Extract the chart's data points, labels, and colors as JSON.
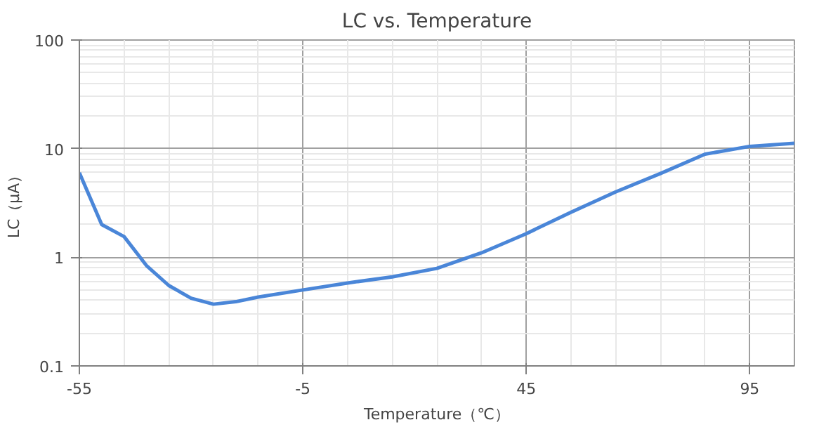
{
  "chart_data": {
    "type": "line",
    "title": "LC vs. Temperature",
    "xlabel": "Temperature（℃）",
    "ylabel": "LC（μA）",
    "x": [
      -55,
      -50,
      -45,
      -40,
      -35,
      -30,
      -25,
      -20,
      -15,
      -5,
      5,
      15,
      25,
      35,
      45,
      55,
      65,
      75,
      85,
      95,
      105
    ],
    "series": [
      {
        "color": "#4a86d8",
        "values": [
          6.0,
          2.0,
          1.55,
          0.84,
          0.55,
          0.42,
          0.37,
          0.39,
          0.43,
          0.5,
          0.58,
          0.66,
          0.79,
          1.1,
          1.65,
          2.6,
          4.0,
          5.9,
          8.9,
          10.5,
          11.2
        ]
      }
    ],
    "xlim": [
      -55,
      105
    ],
    "xticks": [
      -55,
      -5,
      45,
      95
    ],
    "ylim": [
      0.1,
      100
    ],
    "yticks": [
      0.1,
      1,
      10,
      100
    ],
    "log": "y",
    "grid": true,
    "marker": "none",
    "line_style": "solid"
  }
}
